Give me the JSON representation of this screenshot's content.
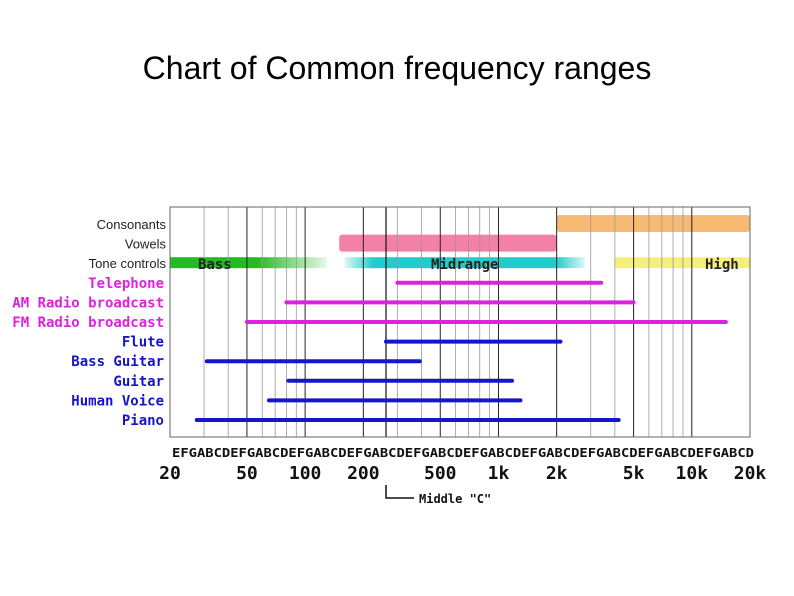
{
  "title": "Chart of Common frequency ranges",
  "chart_data": {
    "type": "range-bar",
    "x_scale": "log",
    "x_unit": "Hz",
    "xlim": [
      20,
      20000
    ],
    "x_tick_labels": [
      {
        "label": "20",
        "value": 20
      },
      {
        "label": "50",
        "value": 50
      },
      {
        "label": "100",
        "value": 100
      },
      {
        "label": "200",
        "value": 200
      },
      {
        "label": "500",
        "value": 500
      },
      {
        "label": "1k",
        "value": 1000
      },
      {
        "label": "2k",
        "value": 2000
      },
      {
        "label": "5k",
        "value": 5000
      },
      {
        "label": "10k",
        "value": 10000
      },
      {
        "label": "20k",
        "value": 20000
      }
    ],
    "note_letters": "EFGABCDEFGABCDEFGABCDEFGABCDEFGABCDEFGABCDEFGABCDEFGABCDEFGABCDEFGABCD",
    "middle_c_label": "Middle \"C\"",
    "middle_c_hz": 262,
    "grid": true,
    "rows": [
      {
        "label": "Consonants",
        "color": "#222222",
        "kind": "soft",
        "segments": [
          {
            "from": 2000,
            "to": 20000,
            "color": "#f5b66b"
          }
        ]
      },
      {
        "label": "Vowels",
        "color": "#222222",
        "kind": "soft",
        "segments": [
          {
            "from": 150,
            "to": 2000,
            "color": "#f27aa2"
          }
        ]
      },
      {
        "label": "Tone controls",
        "color": "#222222",
        "kind": "band",
        "segments": [
          {
            "from": 20,
            "to": 130,
            "color": "#22bb22",
            "text": "Bass"
          },
          {
            "from": 160,
            "to": 2800,
            "color": "#22cccc",
            "text": "Midrange"
          },
          {
            "from": 4000,
            "to": 20000,
            "color": "#f5f07a",
            "text": "High"
          }
        ]
      },
      {
        "label": "Telephone",
        "color": "#dd22dd",
        "from": 300,
        "to": 3400
      },
      {
        "label": "AM Radio broadcast",
        "color": "#dd22dd",
        "from": 80,
        "to": 5000
      },
      {
        "label": "FM Radio broadcast",
        "color": "#dd22dd",
        "from": 50,
        "to": 15000
      },
      {
        "label": "Flute",
        "color": "#1515cc",
        "from": 262,
        "to": 2093
      },
      {
        "label": "Bass Guitar",
        "color": "#1515cc",
        "from": 31,
        "to": 392
      },
      {
        "label": "Guitar",
        "color": "#1515cc",
        "from": 82,
        "to": 1175
      },
      {
        "label": "Human Voice",
        "color": "#1515cc",
        "from": 65,
        "to": 1300
      },
      {
        "label": "Piano",
        "color": "#1515cc",
        "from": 27.5,
        "to": 4186
      }
    ]
  }
}
